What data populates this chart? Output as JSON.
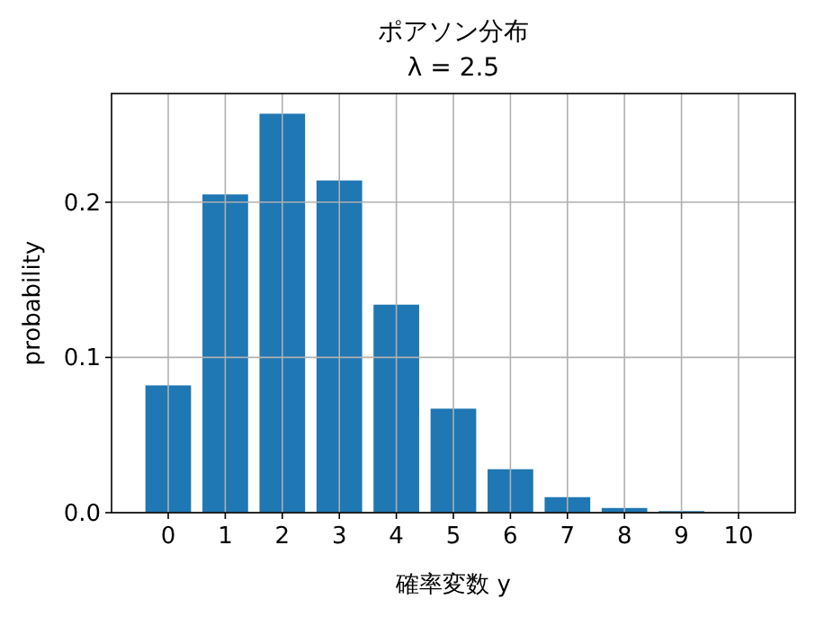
{
  "chart_data": {
    "type": "bar",
    "title": "ポアソン分布",
    "subtitle": "λ = 2.5",
    "xlabel": "確率変数 y",
    "ylabel": "probability",
    "categories": [
      "0",
      "1",
      "2",
      "3",
      "4",
      "5",
      "6",
      "7",
      "8",
      "9",
      "10"
    ],
    "values": [
      0.082,
      0.205,
      0.257,
      0.214,
      0.134,
      0.067,
      0.028,
      0.01,
      0.003,
      0.001,
      null
    ],
    "color": "#1f77b4",
    "ylim": [
      0,
      0.27
    ],
    "yticks": [
      {
        "value": 0,
        "label": "0.0"
      },
      {
        "value": 0.1,
        "label": "0.1"
      },
      {
        "value": 0.2,
        "label": "0.2"
      }
    ],
    "grid": true
  }
}
